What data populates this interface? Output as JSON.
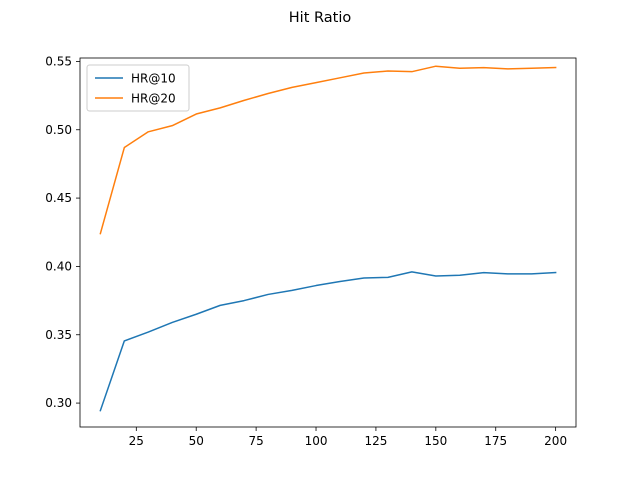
{
  "chart_data": {
    "type": "line",
    "title": "Hit Ratio",
    "xlabel": "",
    "ylabel": "",
    "x": [
      10,
      20,
      30,
      40,
      50,
      60,
      70,
      80,
      90,
      100,
      110,
      120,
      130,
      140,
      150,
      160,
      170,
      180,
      190,
      200
    ],
    "series": [
      {
        "name": "HR@10",
        "color": "#1f77b4",
        "values": [
          0.2945,
          0.3455,
          0.352,
          0.359,
          0.365,
          0.3715,
          0.375,
          0.3795,
          0.3825,
          0.386,
          0.389,
          0.3915,
          0.392,
          0.396,
          0.393,
          0.3935,
          0.3955,
          0.3945,
          0.3945,
          0.3955
        ]
      },
      {
        "name": "HR@20",
        "color": "#ff7f0e",
        "values": [
          0.424,
          0.487,
          0.4985,
          0.503,
          0.5115,
          0.516,
          0.5215,
          0.5265,
          0.531,
          0.5345,
          0.538,
          0.5415,
          0.543,
          0.5425,
          0.5465,
          0.545,
          0.5455,
          0.5445,
          0.545,
          0.5455
        ]
      }
    ],
    "xlim": [
      1.5,
      208.5
    ],
    "ylim": [
      0.2825,
      0.5525
    ],
    "xticks": [
      25,
      50,
      75,
      100,
      125,
      150,
      175,
      200
    ],
    "yticks": [
      0.3,
      0.35,
      0.4,
      0.45,
      0.5,
      0.55
    ],
    "ytick_labels": [
      "0.30",
      "0.35",
      "0.40",
      "0.45",
      "0.50",
      "0.55"
    ],
    "grid": false,
    "legend_position": "top-left"
  }
}
